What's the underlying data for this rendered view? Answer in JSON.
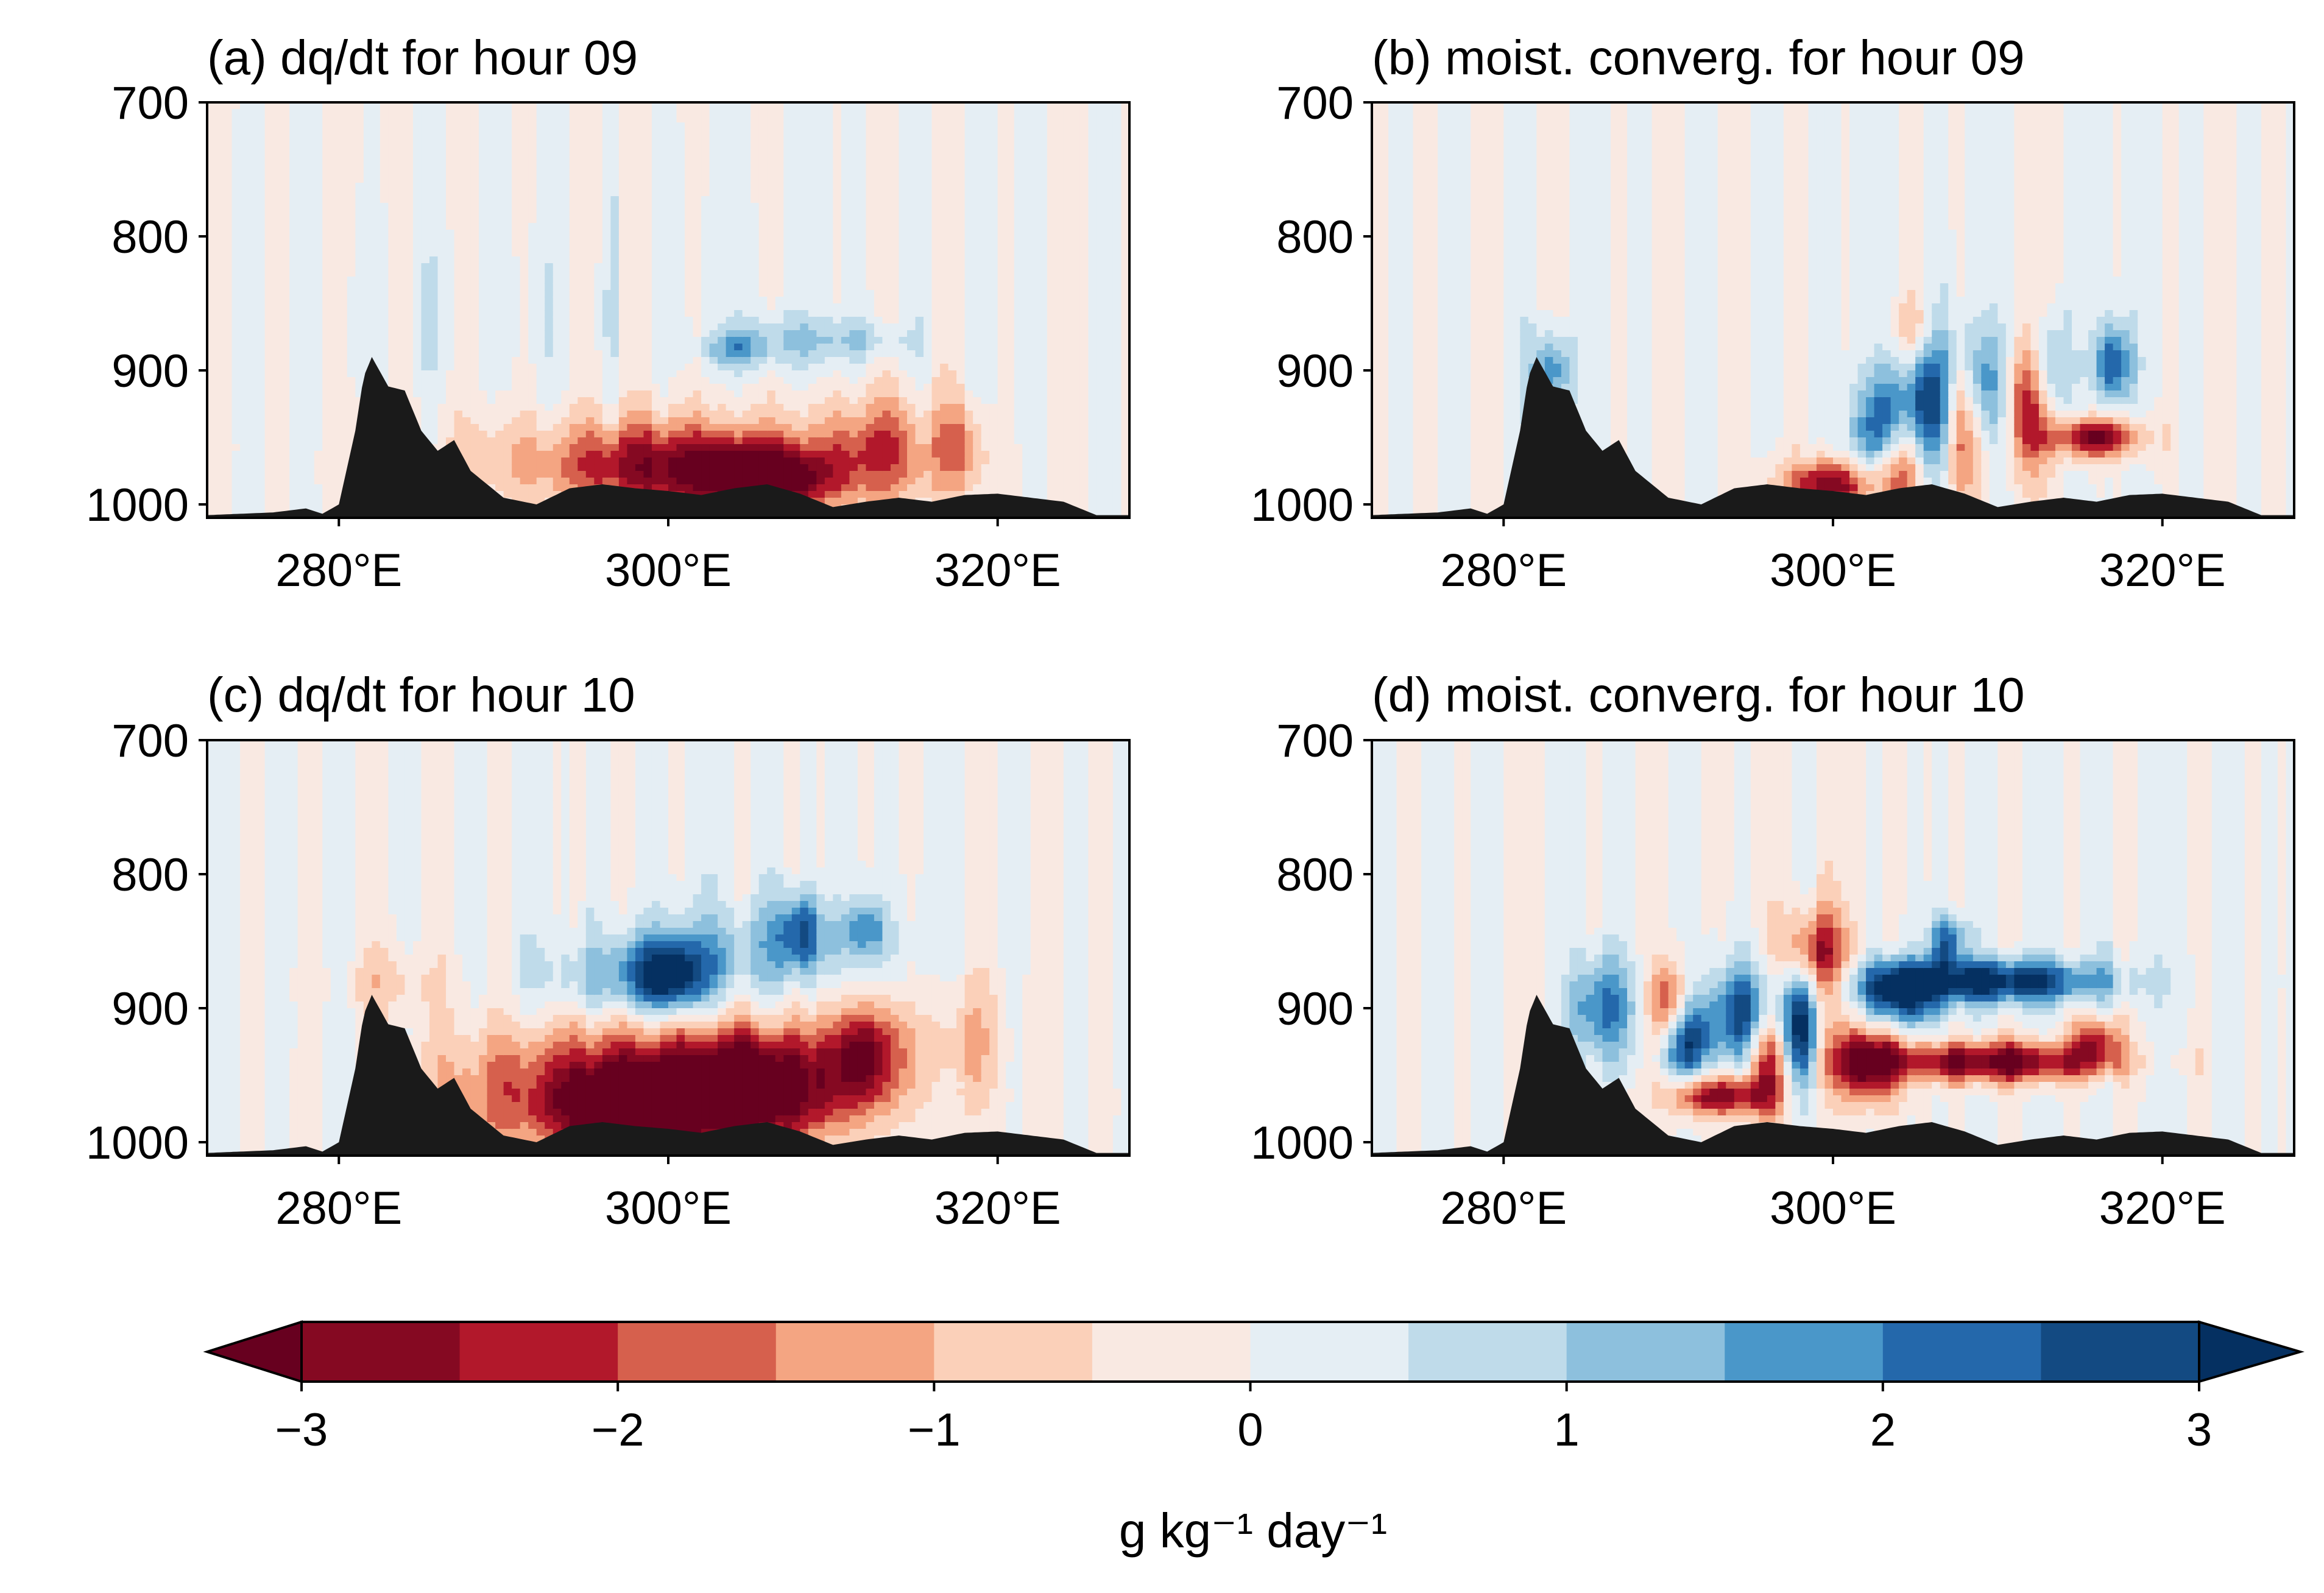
{
  "chart_data": {
    "type": "contour",
    "panels": [
      {
        "id": "a",
        "title": "(a) dq/dt for hour 09",
        "x_ticks": [
          "280°E",
          "300°E",
          "320°E"
        ],
        "x_tick_values": [
          280,
          300,
          320
        ],
        "y_ticks": [
          "700",
          "800",
          "900",
          "1000"
        ],
        "y_tick_values": [
          700,
          800,
          900,
          1000
        ],
        "xlim": [
          272,
          328
        ],
        "ylim": [
          1010,
          700
        ],
        "features": [
          {
            "x": 306,
            "p": 982,
            "value": -3.0,
            "rx": 3.5,
            "rp": 22
          },
          {
            "x": 301,
            "p": 975,
            "value": -2.0,
            "rx": 7,
            "rp": 30
          },
          {
            "x": 298,
            "p": 965,
            "value": -1.2,
            "rx": 14,
            "rp": 40
          },
          {
            "x": 313,
            "p": 960,
            "value": -1.6,
            "rx": 4,
            "rp": 42
          },
          {
            "x": 318,
            "p": 958,
            "value": -1.1,
            "rx": 1.5,
            "rp": 35
          },
          {
            "x": 307,
            "p": 878,
            "value": 1.0,
            "rx": 4,
            "rp": 22
          },
          {
            "x": 304,
            "p": 885,
            "value": 1.3,
            "rx": 1.6,
            "rp": 12
          },
          {
            "x": 312,
            "p": 878,
            "value": 0.7,
            "rx": 3,
            "rp": 14
          },
          {
            "x": 285,
            "p": 900,
            "value": 0.15,
            "rx": 15,
            "rp": 160
          }
        ]
      },
      {
        "id": "b",
        "title": "(b) moist. converg. for hour 09",
        "x_ticks": [
          "280°E",
          "300°E",
          "320°E"
        ],
        "x_tick_values": [
          280,
          300,
          320
        ],
        "y_ticks": [
          "700",
          "800",
          "900",
          "1000"
        ],
        "y_tick_values": [
          700,
          800,
          900,
          1000
        ],
        "xlim": [
          272,
          328
        ],
        "ylim": [
          1010,
          700
        ],
        "features": [
          {
            "x": 306,
            "p": 925,
            "value": 3.2,
            "rx": 1.6,
            "rp": 60
          },
          {
            "x": 303,
            "p": 950,
            "value": 3.0,
            "rx": 1.8,
            "rp": 45
          },
          {
            "x": 309,
            "p": 915,
            "value": 2.6,
            "rx": 1.4,
            "rp": 50
          },
          {
            "x": 313,
            "p": 900,
            "value": 2.0,
            "rx": 1.2,
            "rp": 40
          },
          {
            "x": 317,
            "p": 895,
            "value": 2.4,
            "rx": 1.2,
            "rp": 30
          },
          {
            "x": 300,
            "p": 985,
            "value": -3.0,
            "rx": 3,
            "rp": 18
          },
          {
            "x": 304,
            "p": 970,
            "value": -3.2,
            "rx": 1.6,
            "rp": 35
          },
          {
            "x": 308,
            "p": 940,
            "value": -3.0,
            "rx": 1.4,
            "rp": 55
          },
          {
            "x": 312,
            "p": 925,
            "value": -2.6,
            "rx": 1.4,
            "rp": 50
          },
          {
            "x": 316,
            "p": 950,
            "value": -3.2,
            "rx": 2.6,
            "rp": 15
          },
          {
            "x": 305,
            "p": 870,
            "value": -1.5,
            "rx": 1.2,
            "rp": 30
          },
          {
            "x": 283,
            "p": 900,
            "value": 2.0,
            "rx": 1.2,
            "rp": 30
          }
        ]
      },
      {
        "id": "c",
        "title": "(c) dq/dt for hour 10",
        "x_ticks": [
          "280°E",
          "300°E",
          "320°E"
        ],
        "x_tick_values": [
          280,
          300,
          320
        ],
        "y_ticks": [
          "700",
          "800",
          "900",
          "1000"
        ],
        "y_tick_values": [
          700,
          800,
          900,
          1000
        ],
        "xlim": [
          272,
          328
        ],
        "ylim": [
          1010,
          700
        ],
        "features": [
          {
            "x": 305,
            "p": 960,
            "value": -3.3,
            "rx": 5,
            "rp": 38
          },
          {
            "x": 298,
            "p": 975,
            "value": -3.0,
            "rx": 4,
            "rp": 28
          },
          {
            "x": 312,
            "p": 935,
            "value": -2.6,
            "rx": 2.5,
            "rp": 38
          },
          {
            "x": 300,
            "p": 955,
            "value": -2.0,
            "rx": 10,
            "rp": 55
          },
          {
            "x": 292,
            "p": 965,
            "value": -1.2,
            "rx": 7,
            "rp": 45
          },
          {
            "x": 318,
            "p": 925,
            "value": -1.0,
            "rx": 2.2,
            "rp": 55
          },
          {
            "x": 283,
            "p": 880,
            "value": -0.7,
            "rx": 3,
            "rp": 25
          },
          {
            "x": 300,
            "p": 875,
            "value": 2.6,
            "rx": 2.2,
            "rp": 25
          },
          {
            "x": 298,
            "p": 880,
            "value": 1.4,
            "rx": 5.5,
            "rp": 30
          },
          {
            "x": 308,
            "p": 842,
            "value": 2.0,
            "rx": 1.3,
            "rp": 28
          },
          {
            "x": 312,
            "p": 840,
            "value": 1.5,
            "rx": 1.3,
            "rp": 22
          },
          {
            "x": 306,
            "p": 855,
            "value": 1.0,
            "rx": 8,
            "rp": 35
          }
        ]
      },
      {
        "id": "d",
        "title": "(d) moist. converg. for hour 10",
        "x_ticks": [
          "280°E",
          "300°E",
          "320°E"
        ],
        "x_tick_values": [
          280,
          300,
          320
        ],
        "y_ticks": [
          "700",
          "800",
          "900",
          "1000"
        ],
        "y_tick_values": [
          700,
          800,
          900,
          1000
        ],
        "xlim": [
          272,
          328
        ],
        "ylim": [
          1010,
          700
        ],
        "features": [
          {
            "x": 310,
            "p": 880,
            "value": 3.4,
            "rx": 6.5,
            "rp": 16
          },
          {
            "x": 304,
            "p": 890,
            "value": 3.2,
            "rx": 2.5,
            "rp": 25
          },
          {
            "x": 295,
            "p": 905,
            "value": 3.2,
            "rx": 2.5,
            "rp": 35
          },
          {
            "x": 291,
            "p": 925,
            "value": 3.0,
            "rx": 1.5,
            "rp": 30
          },
          {
            "x": 298,
            "p": 915,
            "value": 2.8,
            "rx": 1.0,
            "rp": 45
          },
          {
            "x": 286,
            "p": 900,
            "value": 2.2,
            "rx": 2.0,
            "rp": 40
          },
          {
            "x": 310,
            "p": 940,
            "value": -3.4,
            "rx": 6.5,
            "rp": 15
          },
          {
            "x": 302,
            "p": 940,
            "value": -3.2,
            "rx": 2.2,
            "rp": 30
          },
          {
            "x": 296,
            "p": 930,
            "value": -3.0,
            "rx": 1.2,
            "rp": 45
          },
          {
            "x": 293,
            "p": 965,
            "value": -3.0,
            "rx": 3,
            "rp": 15
          },
          {
            "x": 299,
            "p": 860,
            "value": -2.5,
            "rx": 2.0,
            "rp": 35
          },
          {
            "x": 290,
            "p": 900,
            "value": -2.4,
            "rx": 1.2,
            "rp": 30
          },
          {
            "x": 316,
            "p": 925,
            "value": -2.2,
            "rx": 1.5,
            "rp": 20
          },
          {
            "x": 307,
            "p": 850,
            "value": 2.5,
            "rx": 1.0,
            "rp": 20
          }
        ]
      }
    ],
    "terrain_profile": {
      "x": [
        272,
        276,
        278,
        279,
        280,
        281,
        281.5,
        282,
        283,
        284,
        285,
        286,
        287,
        288,
        289,
        290,
        292,
        294,
        296,
        298,
        300,
        302,
        304,
        306,
        308,
        310,
        312,
        314,
        316,
        318,
        320,
        322,
        324,
        326,
        328
      ],
      "p": [
        1008,
        1006,
        1003,
        1007,
        1000,
        945,
        905,
        890,
        912,
        915,
        945,
        960,
        952,
        975,
        985,
        995,
        1000,
        988,
        985,
        988,
        990,
        993,
        988,
        985,
        992,
        1002,
        998,
        995,
        998,
        993,
        992,
        995,
        998,
        1008,
        1008
      ]
    },
    "colorbar": {
      "label": "g kg⁻¹ day⁻¹",
      "ticks": [
        "−3",
        "−2",
        "−1",
        "0",
        "1",
        "2",
        "3"
      ],
      "tick_values": [
        -3,
        -2,
        -1,
        0,
        1,
        2,
        3
      ],
      "levels": [
        -3,
        -2.5,
        -2,
        -1.5,
        -1,
        -0.5,
        0,
        0.5,
        1,
        1.5,
        2,
        2.5,
        3
      ],
      "extend": "both",
      "colors": [
        "#67001f",
        "#850922",
        "#b2182b",
        "#d6604d",
        "#f4a582",
        "#fbd0b9",
        "#f9e9e2",
        "#e5eef4",
        "#bfdbea",
        "#8dc0dd",
        "#4a97c9",
        "#2468ab",
        "#134a82",
        "#053061"
      ],
      "terrain_color": "#1a1a1a"
    }
  }
}
